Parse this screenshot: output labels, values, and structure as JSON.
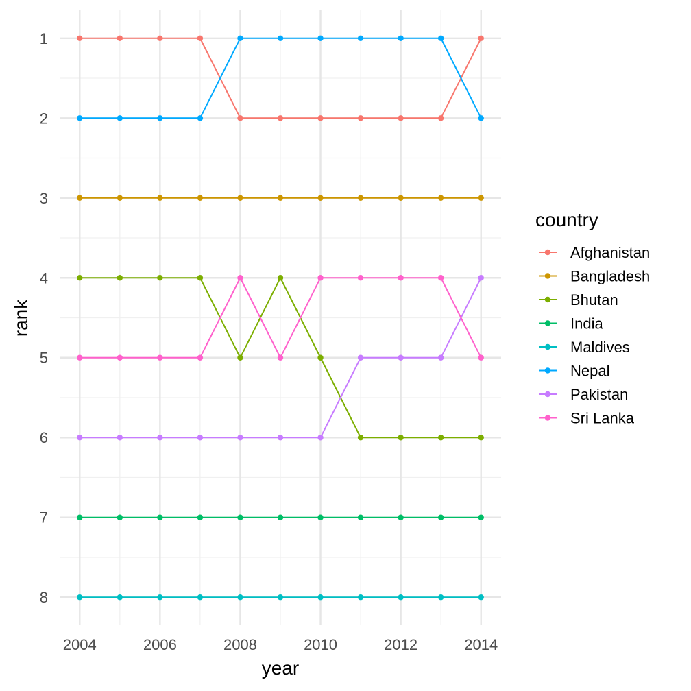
{
  "chart_data": {
    "type": "line",
    "title": "",
    "xlabel": "year",
    "ylabel": "rank",
    "x": [
      2004,
      2005,
      2006,
      2007,
      2008,
      2009,
      2010,
      2011,
      2012,
      2013,
      2014
    ],
    "xlim": [
      2003.5,
      2014.5
    ],
    "ylim": [
      8.35,
      0.65
    ],
    "y_reversed": true,
    "x_ticks": [
      "2004",
      "2006",
      "2008",
      "2010",
      "2012",
      "2014"
    ],
    "y_ticks": [
      "1",
      "2",
      "3",
      "4",
      "5",
      "6",
      "7",
      "8"
    ],
    "grid": true,
    "legend_title": "country",
    "legend_position": "right",
    "series": [
      {
        "name": "Afghanistan",
        "color": "#F8766D",
        "values": [
          1,
          1,
          1,
          1,
          2,
          2,
          2,
          2,
          2,
          2,
          1
        ]
      },
      {
        "name": "Bangladesh",
        "color": "#CD9600",
        "values": [
          3,
          3,
          3,
          3,
          3,
          3,
          3,
          3,
          3,
          3,
          3
        ]
      },
      {
        "name": "Bhutan",
        "color": "#7CAE00",
        "values": [
          4,
          4,
          4,
          4,
          5,
          4,
          5,
          6,
          6,
          6,
          6
        ]
      },
      {
        "name": "India",
        "color": "#00BE67",
        "values": [
          7,
          7,
          7,
          7,
          7,
          7,
          7,
          7,
          7,
          7,
          7
        ]
      },
      {
        "name": "Maldives",
        "color": "#00BFC4",
        "values": [
          8,
          8,
          8,
          8,
          8,
          8,
          8,
          8,
          8,
          8,
          8
        ]
      },
      {
        "name": "Nepal",
        "color": "#00A9FF",
        "values": [
          2,
          2,
          2,
          2,
          1,
          1,
          1,
          1,
          1,
          1,
          2
        ]
      },
      {
        "name": "Pakistan",
        "color": "#C77CFF",
        "values": [
          6,
          6,
          6,
          6,
          6,
          6,
          6,
          5,
          5,
          5,
          4
        ]
      },
      {
        "name": "Sri Lanka",
        "color": "#FF61CC",
        "values": [
          5,
          5,
          5,
          5,
          4,
          5,
          4,
          4,
          4,
          4,
          5
        ]
      }
    ]
  }
}
